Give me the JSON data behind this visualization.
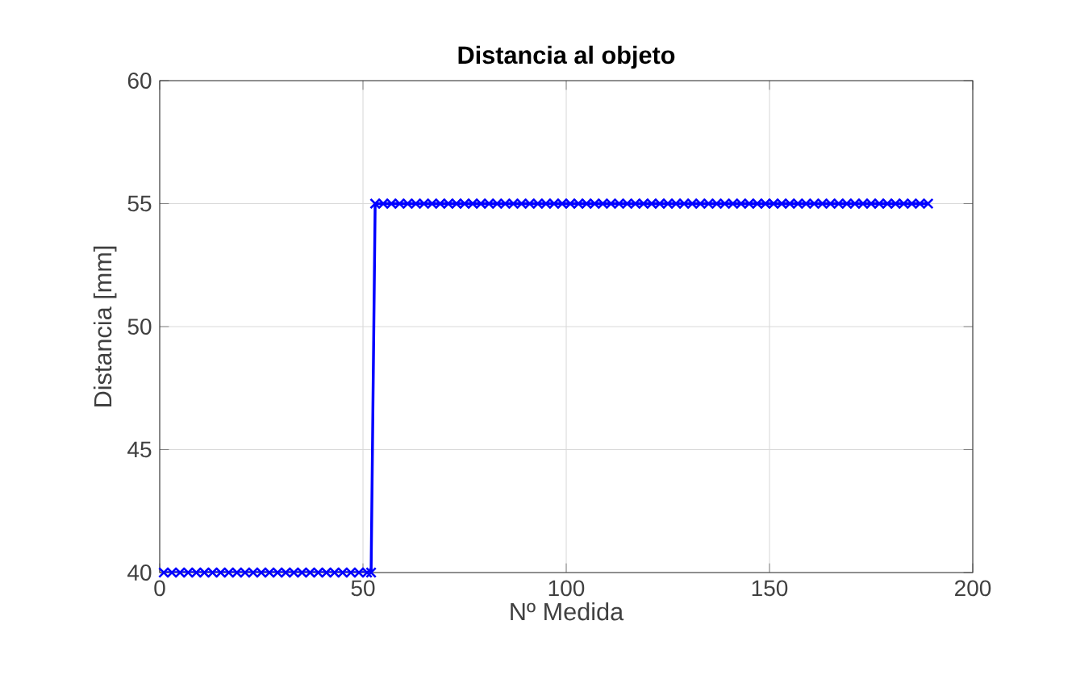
{
  "chart_data": {
    "type": "line",
    "title": "Distancia al objeto",
    "xlabel": "Nº Medida",
    "ylabel": "Distancia [mm]",
    "x": [
      1,
      3,
      5,
      7,
      9,
      11,
      13,
      15,
      17,
      19,
      21,
      23,
      25,
      27,
      29,
      31,
      33,
      35,
      37,
      39,
      41,
      43,
      45,
      47,
      49,
      51,
      52,
      53,
      55,
      57,
      59,
      61,
      63,
      65,
      67,
      69,
      71,
      73,
      75,
      77,
      79,
      81,
      83,
      85,
      87,
      89,
      91,
      93,
      95,
      97,
      99,
      101,
      103,
      105,
      107,
      109,
      111,
      113,
      115,
      117,
      119,
      121,
      123,
      125,
      127,
      129,
      131,
      133,
      135,
      137,
      139,
      141,
      143,
      145,
      147,
      149,
      151,
      153,
      155,
      157,
      159,
      161,
      163,
      165,
      167,
      169,
      171,
      173,
      175,
      177,
      179,
      181,
      183,
      185,
      187,
      189
    ],
    "series": [
      {
        "color": "#0000ff",
        "values": [
          40,
          40,
          40,
          40,
          40,
          40,
          40,
          40,
          40,
          40,
          40,
          40,
          40,
          40,
          40,
          40,
          40,
          40,
          40,
          40,
          40,
          40,
          40,
          40,
          40,
          40,
          40,
          55,
          55,
          55,
          55,
          55,
          55,
          55,
          55,
          55,
          55,
          55,
          55,
          55,
          55,
          55,
          55,
          55,
          55,
          55,
          55,
          55,
          55,
          55,
          55,
          55,
          55,
          55,
          55,
          55,
          55,
          55,
          55,
          55,
          55,
          55,
          55,
          55,
          55,
          55,
          55,
          55,
          55,
          55,
          55,
          55,
          55,
          55,
          55,
          55,
          55,
          55,
          55,
          55,
          55,
          55,
          55,
          55,
          55,
          55,
          55,
          55,
          55,
          55,
          55,
          55,
          55,
          55,
          55,
          55
        ]
      }
    ],
    "xlim": [
      0,
      200
    ],
    "ylim": [
      40,
      60
    ],
    "xticks": [
      0,
      50,
      100,
      150,
      200
    ],
    "yticks": [
      40,
      45,
      50,
      55,
      60
    ],
    "grid": true,
    "marker": "cross",
    "line_style": "solid"
  }
}
